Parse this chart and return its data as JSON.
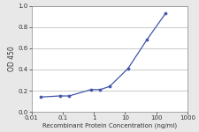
{
  "x": [
    0.02,
    0.08,
    0.16,
    0.8,
    1.6,
    3.2,
    12.5,
    50,
    200
  ],
  "y": [
    0.14,
    0.15,
    0.15,
    0.21,
    0.21,
    0.24,
    0.41,
    0.68,
    0.93
  ],
  "line_color": "#4455aa",
  "marker_color": "#4455aa",
  "marker_style": "o",
  "marker_size": 2.2,
  "line_width": 0.9,
  "xlabel": "Recombinant Protein Concentration (ng/ml)",
  "ylabel": "OD 450",
  "xlim": [
    0.01,
    1000
  ],
  "ylim": [
    0,
    1
  ],
  "yticks": [
    0,
    0.2,
    0.4,
    0.6,
    0.8,
    1
  ],
  "xtick_labels": [
    "0.01",
    "0.1",
    "1",
    "10",
    "100",
    "1000"
  ],
  "xtick_vals": [
    0.01,
    0.1,
    1,
    10,
    100,
    1000
  ],
  "xlabel_fontsize": 5.0,
  "ylabel_fontsize": 5.5,
  "tick_fontsize": 5.0,
  "background_color": "#e8e8e8",
  "plot_bg_color": "#ffffff",
  "grid_color": "#b0b8b0",
  "spine_color": "#888888"
}
